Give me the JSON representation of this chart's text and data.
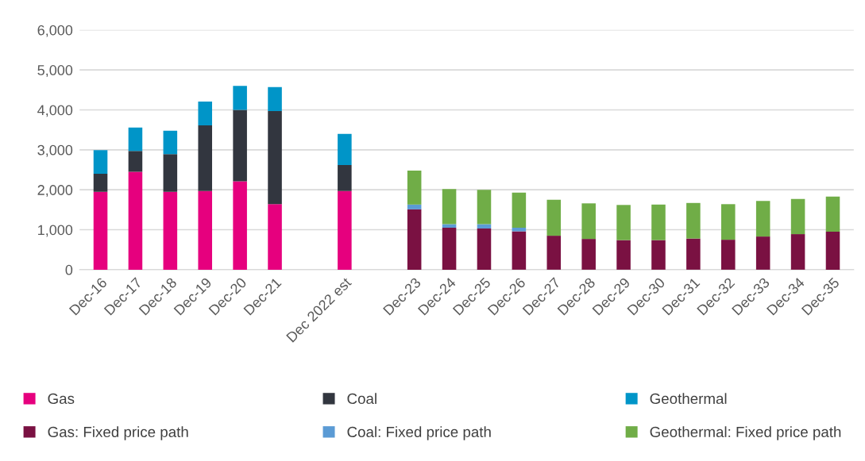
{
  "chart_data": {
    "type": "bar",
    "stacked": true,
    "categories": [
      "Dec-16",
      "Dec-17",
      "Dec-18",
      "Dec-19",
      "Dec-20",
      "Dec-21",
      null,
      "Dec 2022 est",
      null,
      "Dec-23",
      "Dec-24",
      "Dec-25",
      "Dec-26",
      "Dec-27",
      "Dec-28",
      "Dec-29",
      "Dec-30",
      "Dec-31",
      "Dec-32",
      "Dec-33",
      "Dec-34",
      "Dec-35"
    ],
    "series": [
      {
        "name": "Gas",
        "color": "#e6007e",
        "values": [
          1950,
          2450,
          1950,
          1970,
          2210,
          1640,
          null,
          1970,
          null,
          null,
          null,
          null,
          null,
          null,
          null,
          null,
          null,
          null,
          null,
          null,
          null,
          null
        ]
      },
      {
        "name": "Coal",
        "color": "#32363f",
        "values": [
          450,
          520,
          940,
          1640,
          1790,
          2330,
          null,
          650,
          null,
          null,
          null,
          null,
          null,
          null,
          null,
          null,
          null,
          null,
          null,
          null,
          null,
          null
        ]
      },
      {
        "name": "Geothermal",
        "color": "#0095c8",
        "values": [
          590,
          590,
          590,
          600,
          600,
          600,
          null,
          780,
          null,
          null,
          null,
          null,
          null,
          null,
          null,
          null,
          null,
          null,
          null,
          null,
          null,
          null
        ]
      },
      {
        "name": "Gas: Fixed price path",
        "color": "#7a1142",
        "values": [
          null,
          null,
          null,
          null,
          null,
          null,
          null,
          null,
          null,
          1510,
          1050,
          1030,
          960,
          850,
          770,
          740,
          740,
          780,
          750,
          830,
          890,
          950
        ]
      },
      {
        "name": "Coal: Fixed price path",
        "color": "#5b9bd5",
        "values": [
          null,
          null,
          null,
          null,
          null,
          null,
          null,
          null,
          null,
          120,
          90,
          110,
          90,
          null,
          null,
          null,
          null,
          null,
          null,
          null,
          null,
          null
        ]
      },
      {
        "name": "Geothermal: Fixed price path",
        "color": "#70ad47",
        "values": [
          null,
          null,
          null,
          null,
          null,
          null,
          null,
          null,
          null,
          850,
          880,
          860,
          880,
          900,
          890,
          880,
          890,
          890,
          890,
          890,
          880,
          880
        ]
      }
    ],
    "ylim": [
      0,
      6000
    ],
    "yticks": [
      {
        "value": 0,
        "label": "0"
      },
      {
        "value": 1000,
        "label": "1,000"
      },
      {
        "value": 2000,
        "label": "2,000"
      },
      {
        "value": 3000,
        "label": "3,000"
      },
      {
        "value": 4000,
        "label": "4,000"
      },
      {
        "value": 5000,
        "label": "5,000"
      },
      {
        "value": 6000,
        "label": "6,000"
      }
    ],
    "grid": "y",
    "legend": "bottom"
  }
}
